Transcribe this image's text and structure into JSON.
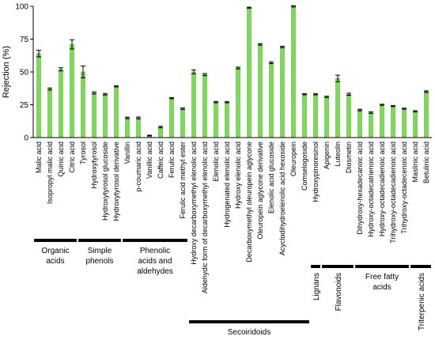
{
  "chart_data": {
    "type": "bar",
    "ylabel": "Rejection (%)",
    "ylim": [
      0,
      100
    ],
    "yticks": [
      0,
      25,
      50,
      75,
      100
    ],
    "grid": false,
    "bar_color": "#7ed957",
    "bar_edge_color": "#4fae32",
    "categories": [
      "Malic acid",
      "Isopropyl malic acid",
      "Quinic acid",
      "Citric acid",
      "Tyrosol",
      "Hydroxytyrosol",
      "Hydroxytyrosol glucoside",
      "Hydroxytyrosol derivative",
      "Vanillin",
      "p-coumaric acid",
      "Vanillic acid",
      "Caffeic acid",
      "Ferulic acid",
      "Ferulic acid methyl ester",
      "Hydroxy decarboxymethyl elenolic acid",
      "Aldehydic form of decarboxymethyl elenolic acid",
      "Elenolic acid",
      "Hydrogenated elenolic acid",
      "Hydroxy elenolic acid",
      "Decarboxymethyl oleuropein aglycone",
      "Oleuropein aglycone derivative",
      "Elenolic acid glucoside",
      "Acyclodihydroelenolic acid hexoside",
      "Oleuropein",
      "Comselogoside",
      "Hydroxypinoresinol",
      "Apigenin",
      "Luteolin",
      "Diosmetin",
      "Dihydroxy-hexadecanoic acid",
      "Hydroxy-octadecatrienoic acid",
      "Hydroxy-octadecadienoic acid",
      "Trihydroxy-octadecadienoic acid",
      "Trihydroxy-octadecenoic acid",
      "Maslinic acid",
      "Betulinic acid"
    ],
    "values": [
      64,
      37,
      52,
      71,
      50,
      34,
      33,
      39,
      15,
      15,
      1.5,
      8,
      30,
      22,
      50,
      48,
      27,
      27,
      53,
      99,
      71,
      57,
      69,
      100,
      33,
      33,
      31,
      45,
      33,
      21,
      19,
      25,
      24,
      22,
      20,
      35
    ],
    "errors": [
      2.5,
      0.8,
      1.2,
      3.5,
      4.5,
      0.8,
      0.6,
      0.4,
      0.6,
      0.7,
      0.3,
      0.6,
      0.4,
      0.6,
      1.5,
      0.8,
      0.5,
      0.5,
      0.7,
      0.4,
      0.6,
      0.7,
      0.6,
      0.5,
      0.4,
      0.5,
      0.5,
      2.5,
      0.8,
      0.6,
      0.6,
      0.4,
      0.4,
      0.4,
      0.5,
      0.6
    ],
    "groups": [
      {
        "label": "Organic\nacids",
        "start": 0,
        "end": 3
      },
      {
        "label": "Simple\nphenols",
        "start": 4,
        "end": 7
      },
      {
        "label": "Phenolic\nacids and\naldehydes",
        "start": 8,
        "end": 13
      },
      {
        "label": "Secoiridoids",
        "start": 14,
        "end": 24
      },
      {
        "label": "Lignans",
        "start": 25,
        "end": 25
      },
      {
        "label": "Flavonoids",
        "start": 26,
        "end": 28
      },
      {
        "label": "Free fatty\nacids",
        "start": 29,
        "end": 33
      },
      {
        "label": "Triterpenic acids",
        "start": 34,
        "end": 35
      }
    ]
  }
}
